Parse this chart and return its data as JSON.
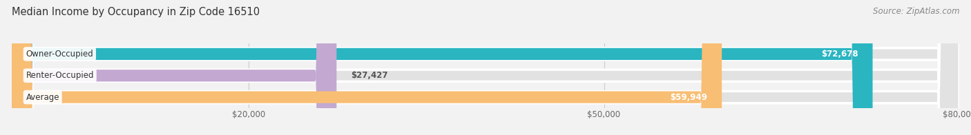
{
  "title": "Median Income by Occupancy in Zip Code 16510",
  "source": "Source: ZipAtlas.com",
  "categories": [
    "Owner-Occupied",
    "Renter-Occupied",
    "Average"
  ],
  "values": [
    72678,
    27427,
    59949
  ],
  "bar_colors": [
    "#2ab5c1",
    "#c3a8d1",
    "#f8be74"
  ],
  "value_labels": [
    "$72,678",
    "$27,427",
    "$59,949"
  ],
  "xlim": [
    0,
    80000
  ],
  "xticks": [
    20000,
    50000,
    80000
  ],
  "xtick_labels": [
    "$20,000",
    "$50,000",
    "$80,000"
  ],
  "bg_color": "#f2f2f2",
  "bar_bg_color": "#e2e2e2",
  "bar_height": 0.55,
  "figsize": [
    14.06,
    1.96
  ],
  "dpi": 100,
  "label_inside_threshold": 40000
}
